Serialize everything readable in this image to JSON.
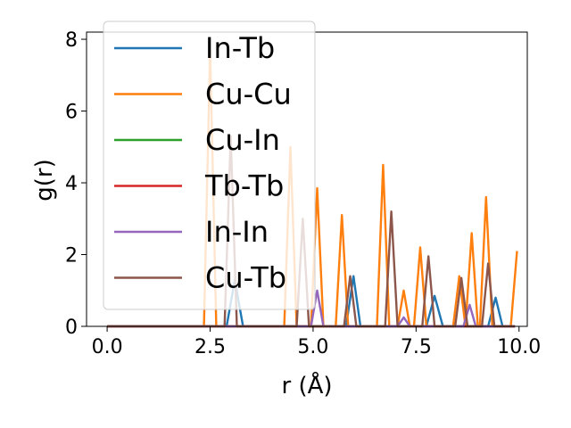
{
  "chart_data": {
    "type": "line",
    "xlabel": "r (Å)",
    "ylabel": "g(r)",
    "xlim": [
      -0.5,
      10.2
    ],
    "ylim": [
      0,
      8.2
    ],
    "xticks": [
      0.0,
      2.5,
      5.0,
      7.5,
      10.0
    ],
    "xtick_labels": [
      "0.0",
      "2.5",
      "5.0",
      "7.5",
      "10.0"
    ],
    "yticks": [
      0,
      2,
      4,
      6,
      8
    ],
    "ytick_labels": [
      "0",
      "2",
      "4",
      "6",
      "8"
    ],
    "grid": false,
    "legend_position": "upper-left",
    "series": [
      {
        "name": "In-Tb",
        "color": "#1f77b4",
        "x": [
          0,
          2.9,
          3.1,
          3.3,
          5.8,
          5.98,
          6.15,
          7.75,
          7.95,
          8.15,
          9.25,
          9.43,
          9.6,
          9.9
        ],
        "y": [
          0,
          0,
          1.3,
          0,
          0,
          1.4,
          0,
          0,
          0.85,
          0,
          0,
          0.8,
          0,
          0
        ]
      },
      {
        "name": "Cu-Cu",
        "color": "#ff7f0e",
        "x": [
          0,
          2.35,
          2.5,
          2.65,
          4.3,
          4.45,
          4.6,
          4.95,
          5.1,
          5.25,
          5.55,
          5.7,
          5.85,
          6.55,
          6.7,
          6.85,
          7.05,
          7.2,
          7.35,
          7.45,
          7.6,
          7.75,
          8.4,
          8.55,
          8.7,
          8.85,
          9.0,
          9.05,
          9.2,
          9.35,
          9.8,
          9.95
        ],
        "y": [
          0,
          0,
          7.7,
          0,
          0,
          5.0,
          0,
          0,
          3.85,
          0,
          0,
          3.1,
          0,
          0,
          4.5,
          0,
          0,
          1.0,
          0,
          0,
          2.2,
          0,
          0,
          1.4,
          0,
          2.6,
          0,
          0,
          3.6,
          0,
          0,
          2.1
        ]
      },
      {
        "name": "Cu-In",
        "color": "#2ca02c",
        "x": [
          0,
          9.9
        ],
        "y": [
          0,
          0
        ]
      },
      {
        "name": "Tb-Tb",
        "color": "#d62728",
        "x": [
          0,
          9.9
        ],
        "y": [
          0,
          0
        ]
      },
      {
        "name": "In-In",
        "color": "#9467bd",
        "x": [
          0,
          4.95,
          5.1,
          5.25,
          7.05,
          7.2,
          7.35,
          8.65,
          8.8,
          8.95,
          9.9
        ],
        "y": [
          0,
          0,
          1.0,
          0,
          0,
          0.25,
          0,
          0,
          0.6,
          0,
          0
        ]
      },
      {
        "name": "Cu-Tb",
        "color": "#8c564b",
        "x": [
          0,
          2.85,
          3.0,
          3.15,
          4.6,
          4.75,
          4.9,
          5.75,
          5.9,
          6.05,
          6.75,
          6.9,
          7.05,
          7.65,
          7.8,
          7.95,
          8.45,
          8.6,
          8.75,
          9.1,
          9.25,
          9.4,
          9.9
        ],
        "y": [
          0,
          0,
          5.3,
          0,
          0,
          3.0,
          0,
          0,
          1.4,
          0,
          0,
          3.2,
          0,
          0,
          1.95,
          0,
          0,
          1.35,
          0,
          0,
          1.75,
          0,
          0
        ]
      }
    ]
  }
}
